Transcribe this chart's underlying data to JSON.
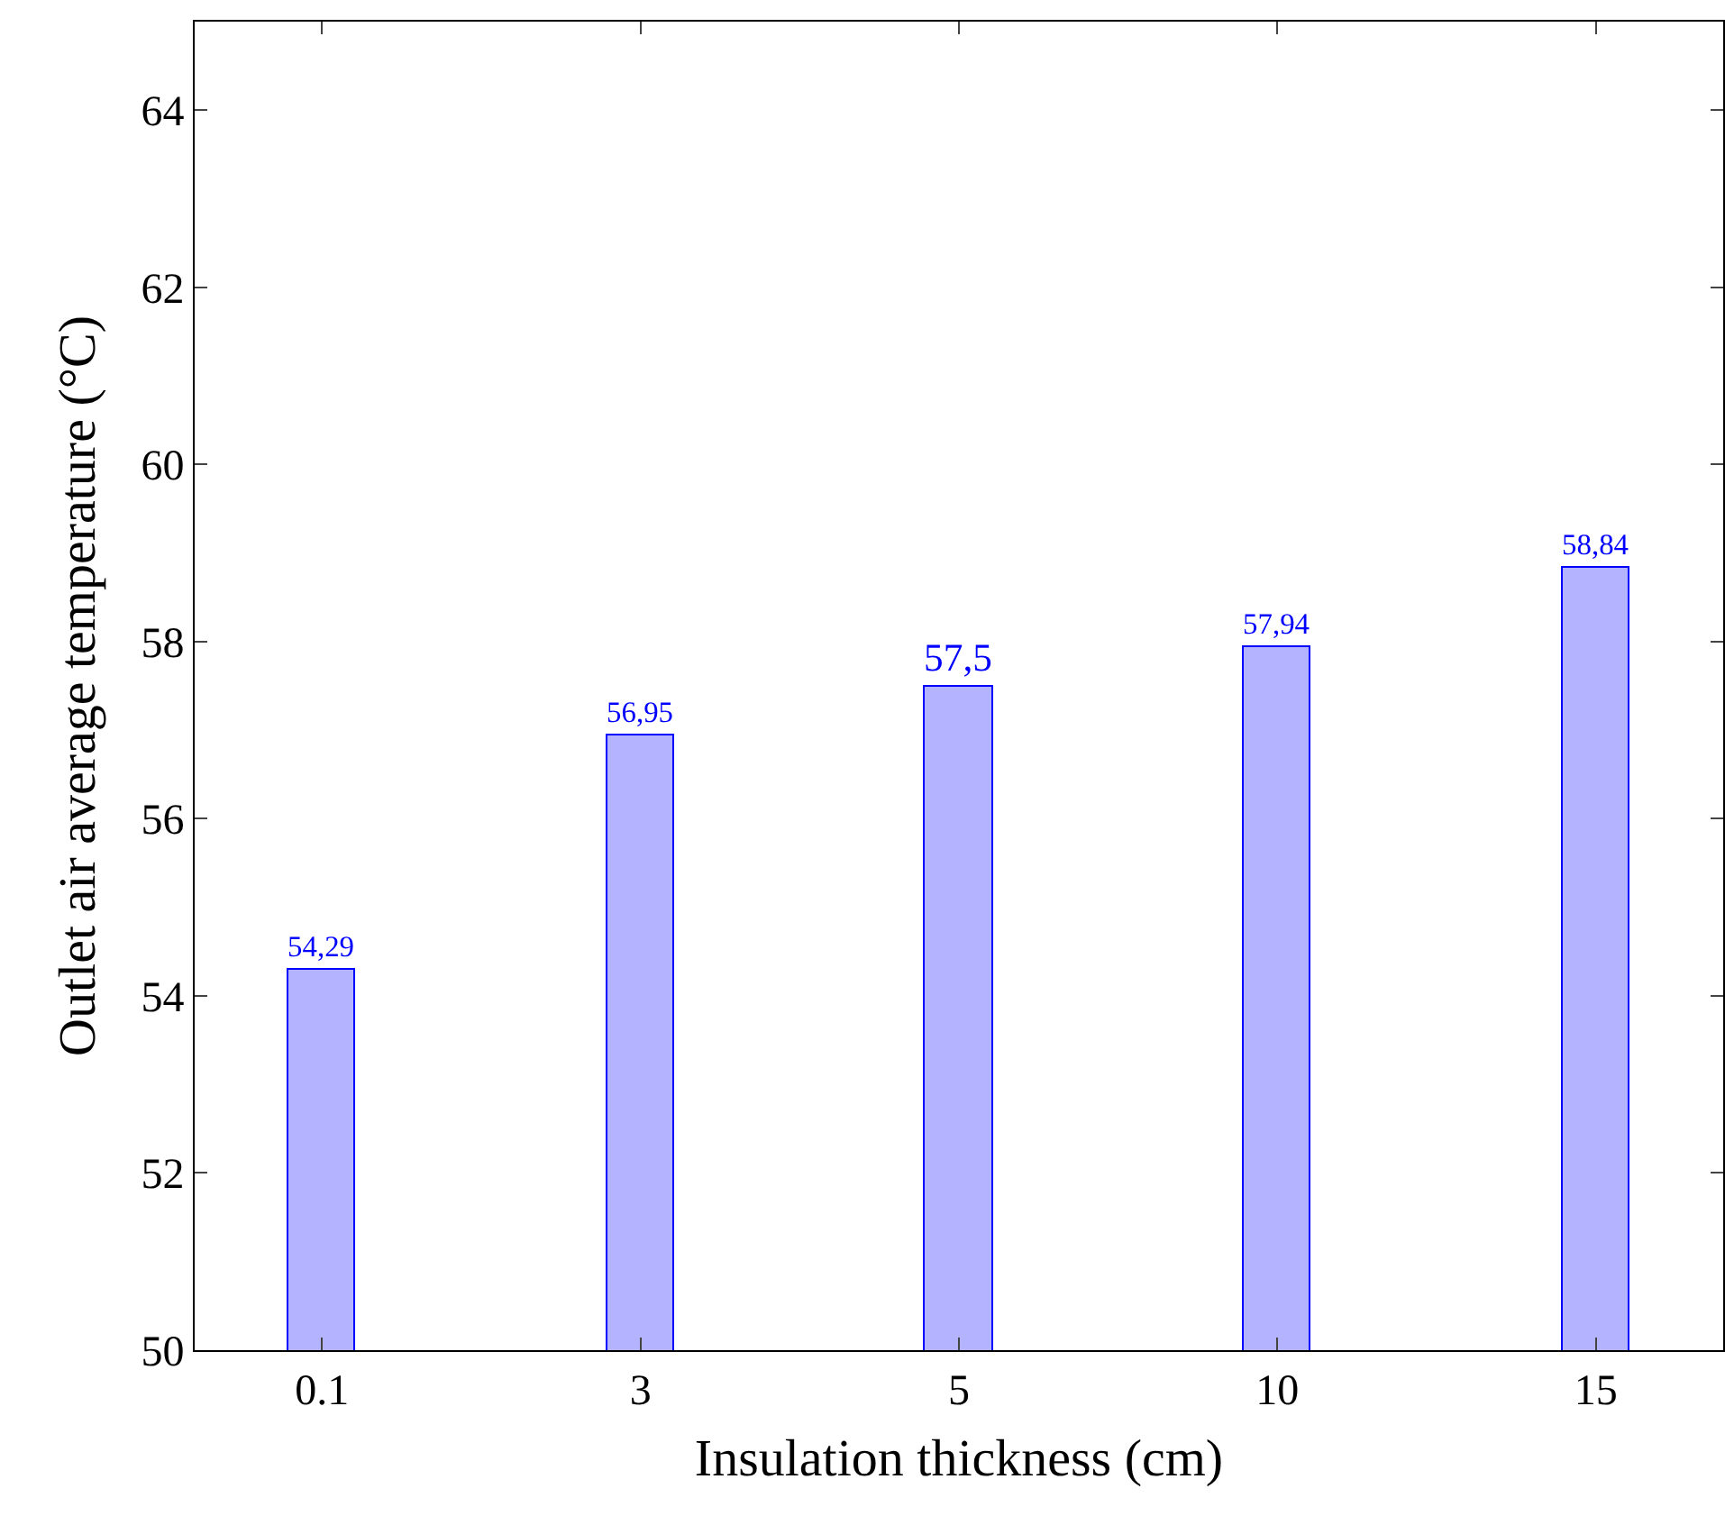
{
  "chart_data": {
    "type": "bar",
    "xlabel": "Insulation thickness (cm)",
    "ylabel": "Outlet air average temperature (°C)",
    "categories": [
      "0.1",
      "3",
      "5",
      "10",
      "15"
    ],
    "values": [
      54.29,
      56.95,
      57.5,
      57.94,
      58.84
    ],
    "value_labels": [
      "54,29",
      "56,95",
      "57,5",
      "57,94",
      "58,84"
    ],
    "color": "#b3b3ff",
    "ylim": [
      50,
      65
    ],
    "yticks": [
      50,
      52,
      54,
      56,
      58,
      60,
      62,
      64
    ],
    "grid": false,
    "legend": false
  }
}
